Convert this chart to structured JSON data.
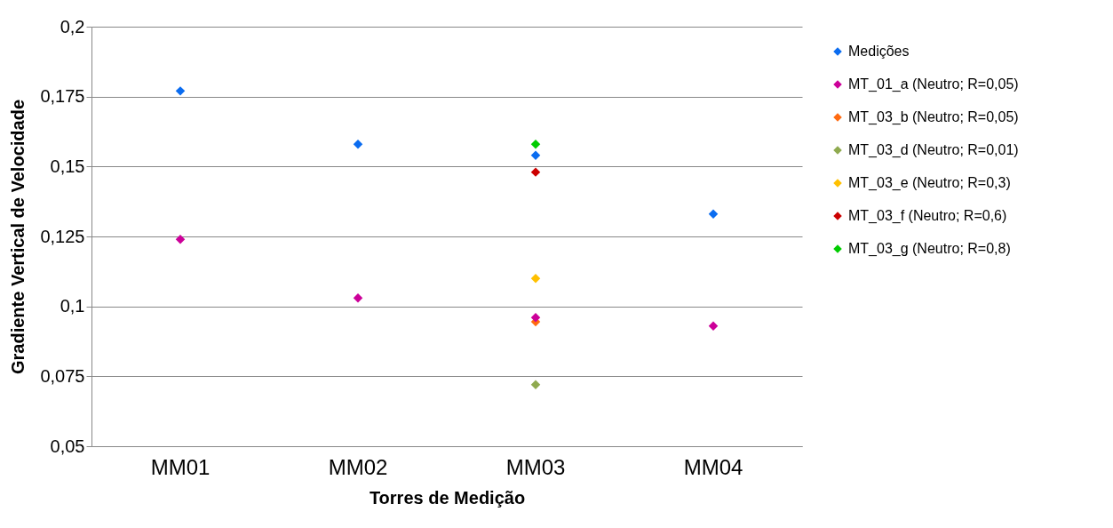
{
  "chart_data": {
    "type": "scatter",
    "xlabel": "Torres de Medição",
    "ylabel": "Gradiente Vertical de Velocidade",
    "categories": [
      "MM01",
      "MM02",
      "MM03",
      "MM04"
    ],
    "series": [
      {
        "name": "Medições",
        "color": "#0a6cf0",
        "values": [
          0.177,
          0.158,
          0.154,
          0.133
        ]
      },
      {
        "name": "MT_01_a (Neutro; R=0,05)",
        "color": "#cc0099",
        "values": [
          0.124,
          0.103,
          0.096,
          0.093
        ]
      },
      {
        "name": "MT_03_b (Neutro; R=0,05)",
        "color": "#ff6a10",
        "values": [
          null,
          null,
          0.0945,
          null
        ]
      },
      {
        "name": "MT_03_d (Neutro; R=0,01)",
        "color": "#8faa4f",
        "values": [
          null,
          null,
          0.072,
          null
        ]
      },
      {
        "name": "MT_03_e (Neutro; R=0,3)",
        "color": "#ffc000",
        "values": [
          null,
          null,
          0.11,
          null
        ]
      },
      {
        "name": "MT_03_f (Neutro; R=0,6)",
        "color": "#cc0000",
        "values": [
          null,
          null,
          0.148,
          null
        ]
      },
      {
        "name": "MT_03_g (Neutro; R=0,8)",
        "color": "#00cc00",
        "values": [
          null,
          null,
          0.158,
          null
        ]
      }
    ],
    "ylim": [
      0.05,
      0.2
    ],
    "yticks": [
      {
        "value": 0.05,
        "label": "0,05"
      },
      {
        "value": 0.075,
        "label": "0,075"
      },
      {
        "value": 0.1,
        "label": "0,1"
      },
      {
        "value": 0.125,
        "label": "0,125"
      },
      {
        "value": 0.15,
        "label": "0,15"
      },
      {
        "value": 0.175,
        "label": "0,175"
      },
      {
        "value": 0.2,
        "label": "0,2"
      }
    ],
    "grid": "y",
    "legend": "right",
    "marker": "diamond"
  }
}
